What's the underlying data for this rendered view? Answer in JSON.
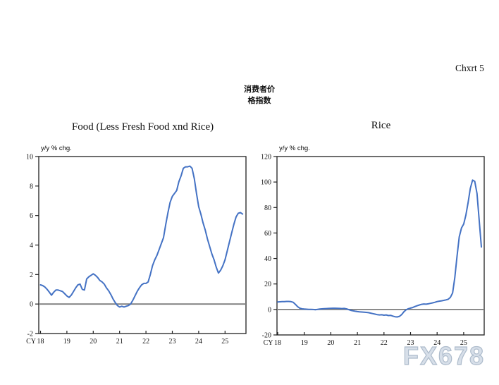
{
  "page": {
    "corner_label": "Chxrt 5",
    "header_line1": "消费者价",
    "header_line2": "格指数",
    "watermark": "FX678",
    "watermark_color": "#aebccc"
  },
  "chart_data": [
    {
      "type": "line",
      "title": "Food (Less Fresh Food xnd Rice)",
      "ylabel": "y/y % chg.",
      "x_axis_prefix": "CY",
      "x_ticks": [
        "18",
        "19",
        "20",
        "21",
        "22",
        "23",
        "24",
        "25"
      ],
      "y_ticks": [
        10,
        8,
        6,
        4,
        2,
        0,
        -2
      ],
      "ylim": [
        -2,
        10
      ],
      "xlim_years": [
        2018,
        2025.85
      ],
      "grid": false,
      "legend": "none",
      "zero_line": true,
      "line_color": "#4472c4",
      "zero_line_color": "#7d7d7d",
      "frequency": "monthly",
      "start": "2018-01",
      "values": [
        1.3,
        1.25,
        1.15,
        1.0,
        0.8,
        0.6,
        0.8,
        0.95,
        0.95,
        0.9,
        0.85,
        0.7,
        0.55,
        0.45,
        0.6,
        0.85,
        1.1,
        1.3,
        1.35,
        1.0,
        0.95,
        1.7,
        1.85,
        1.95,
        2.05,
        1.95,
        1.8,
        1.6,
        1.5,
        1.35,
        1.1,
        0.9,
        0.65,
        0.35,
        0.1,
        -0.1,
        -0.2,
        -0.15,
        -0.2,
        -0.15,
        -0.1,
        0.0,
        0.25,
        0.55,
        0.85,
        1.1,
        1.3,
        1.4,
        1.4,
        1.5,
        2.0,
        2.6,
        3.0,
        3.3,
        3.7,
        4.1,
        4.5,
        5.4,
        6.2,
        6.9,
        7.3,
        7.5,
        7.7,
        8.3,
        8.7,
        9.2,
        9.3,
        9.3,
        9.35,
        9.2,
        8.5,
        7.5,
        6.6,
        6.1,
        5.5,
        5.0,
        4.4,
        3.9,
        3.4,
        3.0,
        2.5,
        2.1,
        2.3,
        2.6,
        3.0,
        3.6,
        4.2,
        4.8,
        5.4,
        5.9,
        6.15,
        6.2,
        6.1
      ]
    },
    {
      "type": "line",
      "title": "Rice",
      "ylabel": "y/y % chg.",
      "x_axis_prefix": "CY",
      "x_ticks": [
        "18",
        "19",
        "20",
        "21",
        "22",
        "23",
        "24",
        "25"
      ],
      "y_ticks": [
        120,
        100,
        80,
        60,
        40,
        20,
        0,
        -20
      ],
      "ylim": [
        -20,
        120
      ],
      "xlim_years": [
        2018,
        2025.85
      ],
      "grid": false,
      "legend": "none",
      "zero_line": true,
      "line_color": "#4472c4",
      "zero_line_color": "#7d7d7d",
      "frequency": "monthly",
      "start": "2018-01",
      "values": [
        5.9,
        6.0,
        6.1,
        6.2,
        6.3,
        6.3,
        6.1,
        5.6,
        4.0,
        2.2,
        1.0,
        0.5,
        0.3,
        0.2,
        0.1,
        0.1,
        0.0,
        -0.2,
        0.1,
        0.3,
        0.5,
        0.6,
        0.7,
        0.8,
        0.9,
        1.0,
        1.0,
        0.9,
        0.8,
        0.7,
        0.8,
        0.5,
        -0.1,
        -0.7,
        -1.1,
        -1.4,
        -1.7,
        -1.9,
        -2.0,
        -2.1,
        -2.3,
        -2.5,
        -2.9,
        -3.3,
        -3.7,
        -4.1,
        -4.3,
        -4.2,
        -4.5,
        -4.3,
        -4.8,
        -4.6,
        -5.2,
        -5.7,
        -5.9,
        -5.4,
        -4.0,
        -1.8,
        -0.3,
        0.6,
        1.1,
        1.5,
        2.3,
        2.9,
        3.5,
        4.0,
        4.3,
        4.1,
        4.4,
        4.8,
        5.2,
        5.6,
        6.2,
        6.5,
        6.8,
        7.1,
        7.5,
        8.0,
        9.5,
        13.0,
        25.0,
        42.0,
        57.0,
        64.0,
        67.0,
        74.0,
        84.0,
        95.0,
        101.5,
        100.5,
        91.0,
        70.0,
        49.0
      ]
    }
  ]
}
